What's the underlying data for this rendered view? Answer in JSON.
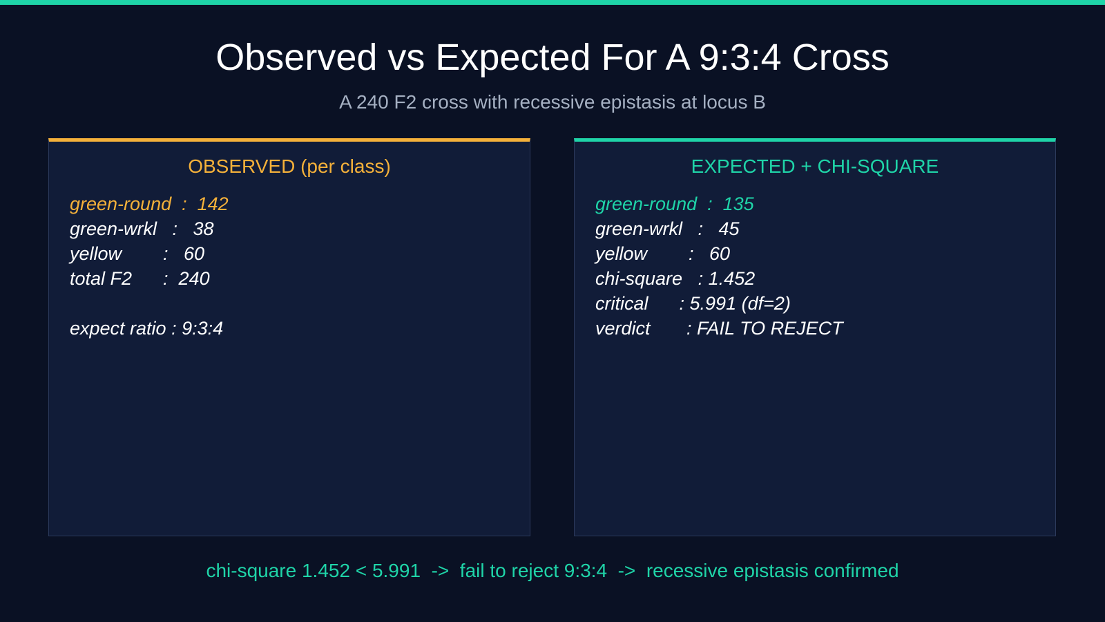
{
  "header": {
    "title": "Observed vs Expected For A 9:3:4 Cross",
    "subtitle": "A 240 F2 cross with recessive epistasis at locus B"
  },
  "panels": [
    {
      "title": "OBSERVED (per class)",
      "lines": [
        "green-round  :  142",
        "green-wrkl   :   38",
        "yellow        :   60",
        "total F2      :  240"
      ],
      "note": "expect ratio : 9:3:4"
    },
    {
      "title": "EXPECTED + CHI-SQUARE",
      "lines": [
        "green-round  :  135",
        "green-wrkl   :   45",
        "yellow        :   60",
        "chi-square   : 1.452",
        "critical      : 5.991 (df=2)",
        "verdict       : FAIL TO REJECT"
      ]
    }
  ],
  "footer": "chi-square 1.452 < 5.991  ->  fail to reject 9:3:4  ->  recessive epistasis confirmed"
}
